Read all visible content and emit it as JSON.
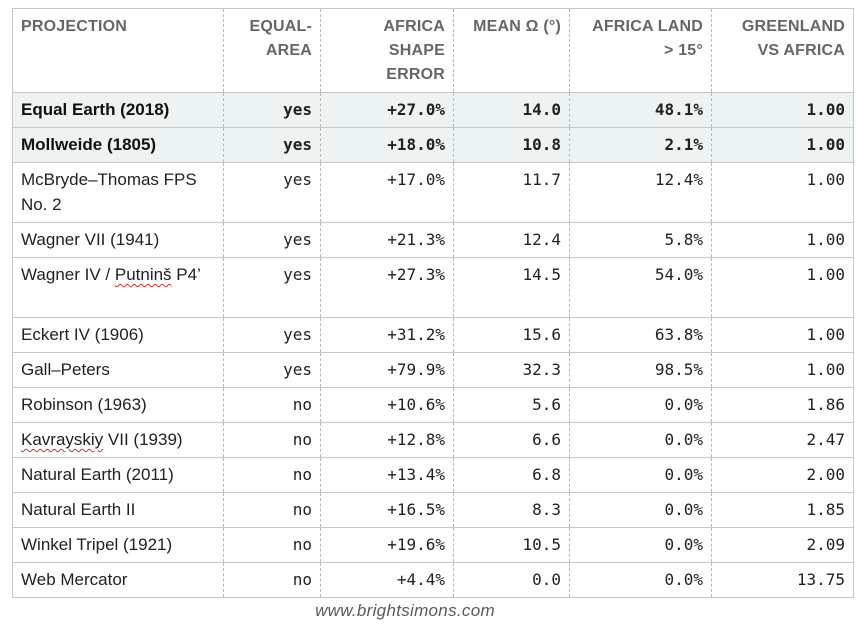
{
  "table": {
    "headers": {
      "projection": "PROJECTION",
      "equal_area": "EQUAL-\nAREA",
      "africa_shape_error": "AFRICA\nSHAPE\nERROR",
      "mean_omega": "MEAN Ω (°)",
      "africa_land": "AFRICA LAND\n> 15°",
      "greenland_vs_africa": "GREENLAND\nVS AFRICA"
    },
    "rows": [
      {
        "name": "Equal Earth (2018)",
        "equal_area": "yes",
        "shape_error": "+27.0%",
        "mean_omega": "14.0",
        "africa_land": "48.1%",
        "greenland": "1.00"
      },
      {
        "name": "Mollweide (1805)",
        "equal_area": "yes",
        "shape_error": "+18.0%",
        "mean_omega": "10.8",
        "africa_land": "2.1%",
        "greenland": "1.00"
      },
      {
        "name": "McBryde–Thomas FPS No. 2",
        "equal_area": "yes",
        "shape_error": "+17.0%",
        "mean_omega": "11.7",
        "africa_land": "12.4%",
        "greenland": "1.00"
      },
      {
        "name": "Wagner VII (1941)",
        "equal_area": "yes",
        "shape_error": "+21.3%",
        "mean_omega": "12.4",
        "africa_land": "5.8%",
        "greenland": "1.00"
      },
      {
        "name_prefix": "Wagner IV / ",
        "name_flagged": "Putninš",
        "name_suffix": " P4’",
        "equal_area": "yes",
        "shape_error": "+27.3%",
        "mean_omega": "14.5",
        "africa_land": "54.0%",
        "greenland": "1.00"
      },
      {
        "name": "Eckert IV (1906)",
        "equal_area": "yes",
        "shape_error": "+31.2%",
        "mean_omega": "15.6",
        "africa_land": "63.8%",
        "greenland": "1.00"
      },
      {
        "name": "Gall–Peters",
        "equal_area": "yes",
        "shape_error": "+79.9%",
        "mean_omega": "32.3",
        "africa_land": "98.5%",
        "greenland": "1.00"
      },
      {
        "name": "Robinson (1963)",
        "equal_area": "no",
        "shape_error": "+10.6%",
        "mean_omega": "5.6",
        "africa_land": "0.0%",
        "greenland": "1.86"
      },
      {
        "name_flagged": "Kavrayskiy",
        "name_suffix": " VII (1939)",
        "equal_area": "no",
        "shape_error": "+12.8%",
        "mean_omega": "6.6",
        "africa_land": "0.0%",
        "greenland": "2.47"
      },
      {
        "name": "Natural Earth (2011)",
        "equal_area": "no",
        "shape_error": "+13.4%",
        "mean_omega": "6.8",
        "africa_land": "0.0%",
        "greenland": "2.00"
      },
      {
        "name": "Natural Earth II",
        "equal_area": "no",
        "shape_error": "+16.5%",
        "mean_omega": "8.3",
        "africa_land": "0.0%",
        "greenland": "1.85"
      },
      {
        "name": "Winkel Tripel (1921)",
        "equal_area": "no",
        "shape_error": "+19.6%",
        "mean_omega": "10.5",
        "africa_land": "0.0%",
        "greenland": "2.09"
      },
      {
        "name": "Web Mercator",
        "equal_area": "no",
        "shape_error": "+4.4%",
        "mean_omega": "0.0",
        "africa_land": "0.0%",
        "greenland": "13.75"
      }
    ]
  },
  "footer": {
    "credit": "www.brightsimons.com"
  },
  "colors": {
    "highlight_row_bg": "#edf2f2",
    "header_text": "#666666",
    "spellcheck_underline": "#d22f2f"
  }
}
